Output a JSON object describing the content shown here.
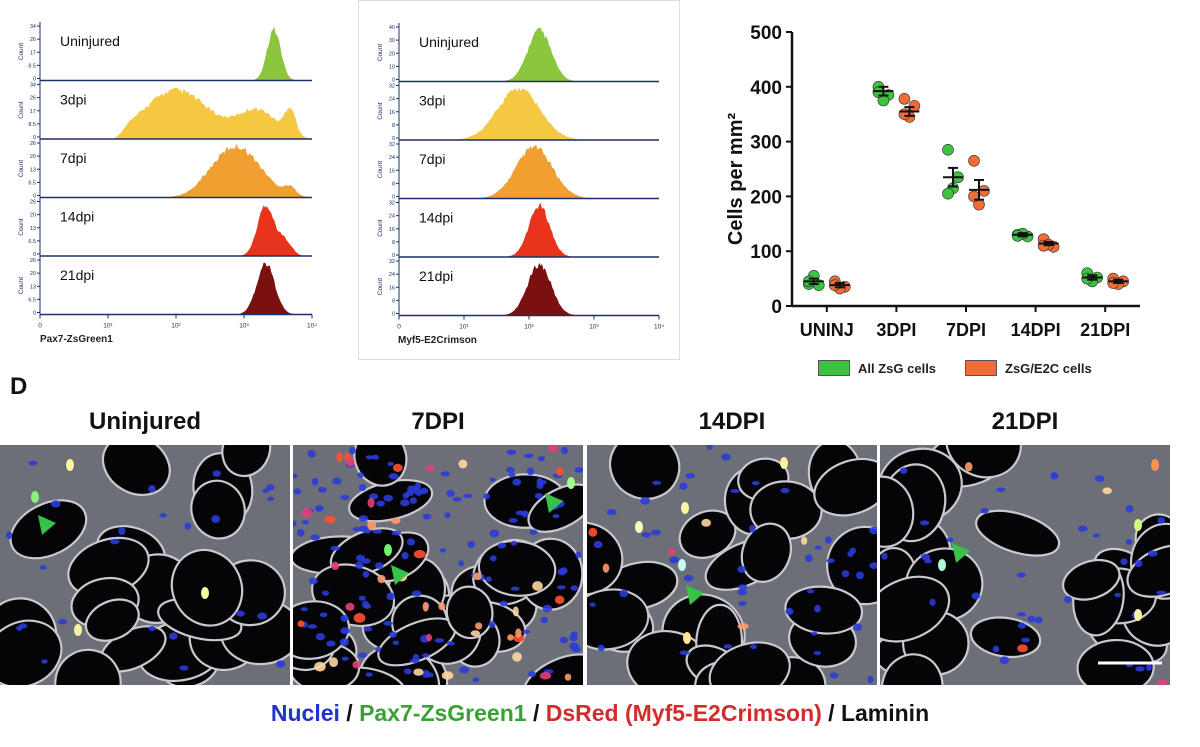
{
  "colors": {
    "green": "#6abf2a",
    "orange_group": "#f26c38",
    "green_group": "#3cc441",
    "nuclei": "#1f35c9",
    "pax7": "#3aa135",
    "dsred": "#d42c2c",
    "laminin": "#111111"
  },
  "histograms": [
    {
      "xlabel": "Pax7-ZsGreen1",
      "xticks": [
        "0",
        "10¹",
        "10²",
        "10³",
        "10⁴"
      ],
      "rows": [
        {
          "label": "Uninjured",
          "color": "#8cc63f",
          "yticks": [
            "34",
            "26",
            "17",
            "8.5",
            "0"
          ]
        },
        {
          "label": "3dpi",
          "color": "#f5c842",
          "yticks": [
            "34",
            "26",
            "17",
            "8.5",
            "0"
          ]
        },
        {
          "label": "7dpi",
          "color": "#f0a030",
          "yticks": [
            "26",
            "20",
            "13",
            "6.5",
            "0"
          ]
        },
        {
          "label": "14dpi",
          "color": "#e8341c",
          "yticks": [
            "26",
            "20",
            "13",
            "6.5",
            "0"
          ]
        },
        {
          "label": "21dpi",
          "color": "#7a1010",
          "yticks": [
            "26",
            "20",
            "13",
            "6.5",
            "0"
          ]
        }
      ],
      "ylabel": "Count"
    },
    {
      "xlabel": "Myf5-E2Crimson",
      "xticks": [
        "0",
        "10¹",
        "10²",
        "10³",
        "10⁴"
      ],
      "rows": [
        {
          "label": "Uninjured",
          "color": "#8cc63f",
          "yticks": [
            "40",
            "30",
            "20",
            "10",
            "0"
          ]
        },
        {
          "label": "3dpi",
          "color": "#f5c842",
          "yticks": [
            "32",
            "24",
            "16",
            "8",
            "0"
          ]
        },
        {
          "label": "7dpi",
          "color": "#f0a030",
          "yticks": [
            "32",
            "24",
            "16",
            "8",
            "0"
          ]
        },
        {
          "label": "14dpi",
          "color": "#e8341c",
          "yticks": [
            "32",
            "24",
            "16",
            "8",
            "0"
          ]
        },
        {
          "label": "21dpi",
          "color": "#7a1010",
          "yticks": [
            "32",
            "24",
            "16",
            "8",
            "0"
          ]
        }
      ],
      "ylabel": "Count"
    }
  ],
  "chart_data": [
    {
      "type": "scatter",
      "title": "",
      "ylabel": "Cells per mm²",
      "xlabel": "",
      "ylim": [
        0,
        500
      ],
      "yticks": [
        "0",
        "100",
        "200",
        "300",
        "400",
        "500"
      ],
      "categories": [
        "UNINJ",
        "3DPI",
        "7DPI",
        "14DPI",
        "21DPI"
      ],
      "series": [
        {
          "name": "All ZsG cells",
          "color": "#3cc441",
          "points": [
            [
              40,
              38,
              55,
              45
            ],
            [
              400,
              385,
              375,
              390
            ],
            [
              285,
              235,
              215,
              205
            ],
            [
              130,
              127,
              132,
              128
            ],
            [
              60,
              52,
              45,
              50
            ]
          ],
          "mean": [
            45,
            392,
            235,
            130,
            52
          ],
          "sem": [
            5,
            8,
            17,
            3,
            4
          ]
        },
        {
          "name": "ZsG/E2C cells",
          "color": "#f26c38",
          "points": [
            [
              45,
              35,
              32,
              38
            ],
            [
              378,
              365,
              345,
              350
            ],
            [
              265,
              210,
              185,
              200
            ],
            [
              122,
              108,
              112,
              110
            ],
            [
              50,
              45,
              40,
              42
            ]
          ],
          "mean": [
            38,
            355,
            212,
            114,
            45
          ],
          "sem": [
            4,
            8,
            18,
            3,
            3
          ]
        }
      ],
      "legend": [
        "All ZsG cells",
        "ZsG/E2C cells"
      ]
    }
  ],
  "panel_d": {
    "label": "D",
    "titles": [
      "Uninjured",
      "7DPI",
      "14DPI",
      "21DPI"
    ]
  },
  "caption": {
    "part1": "Nuclei",
    "sep1": " / ",
    "part2": "Pax7-ZsGreen1",
    "sep2": " / ",
    "part3": "DsRed (Myf5-E2Crimson)",
    "sep3": " / ",
    "part4": "Laminin"
  }
}
